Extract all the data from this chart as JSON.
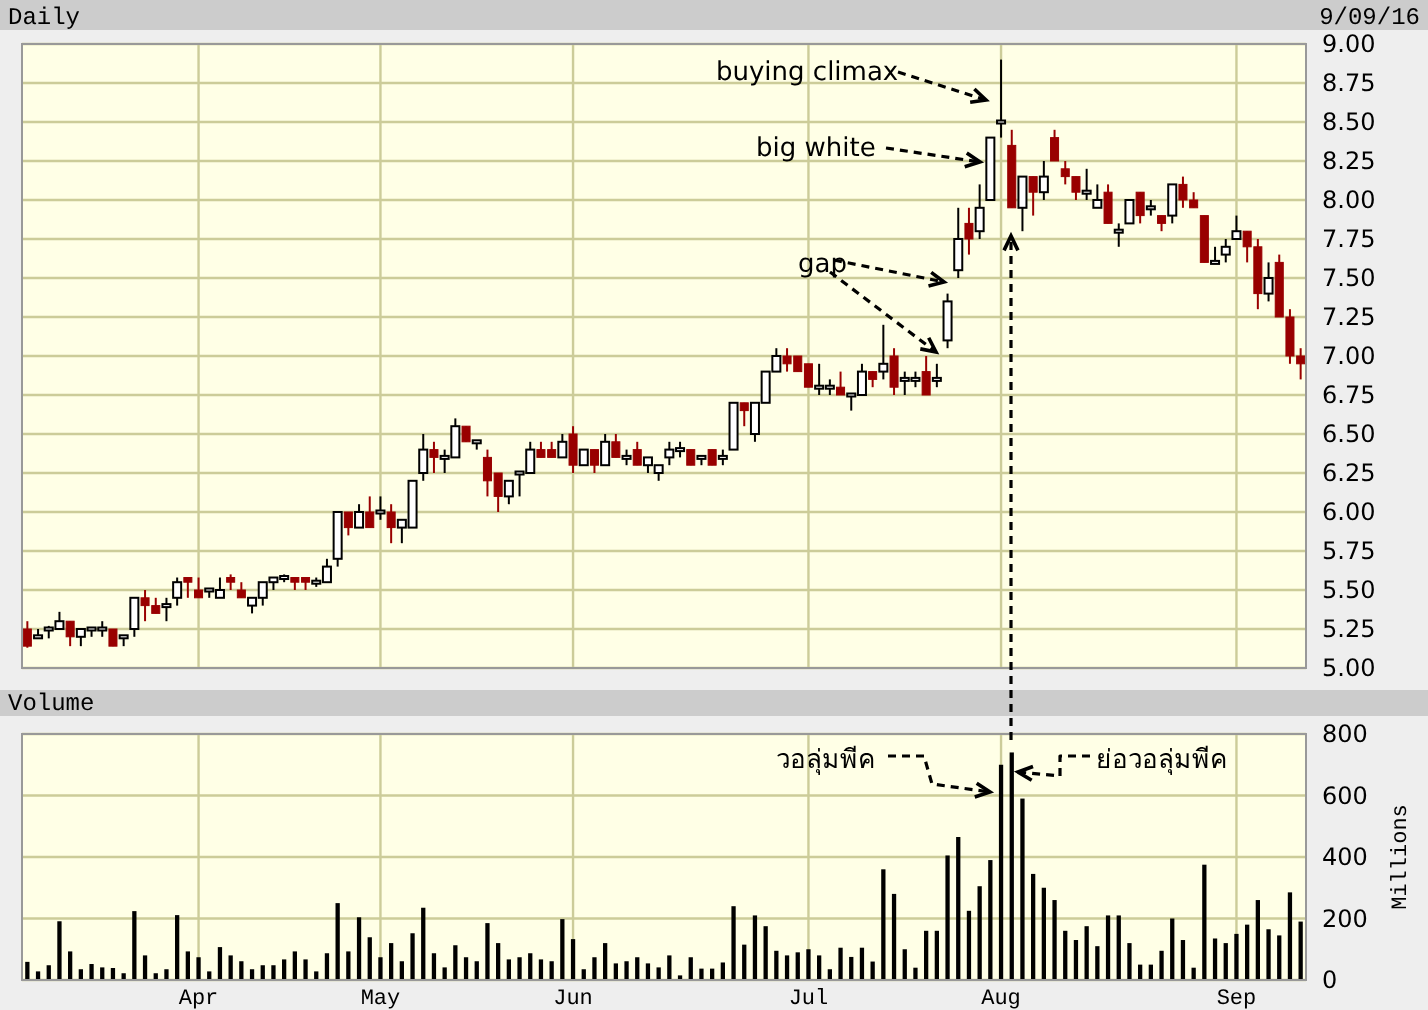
{
  "chart_data": [
    {
      "type": "candlestick",
      "title": "Daily",
      "subtitle": "9/09/16",
      "categories": [
        null,
        null,
        null,
        null,
        null,
        null,
        null,
        null,
        null,
        null,
        null,
        null,
        null,
        null,
        null,
        null,
        null,
        null,
        null,
        null,
        null,
        null,
        null,
        null,
        null,
        null,
        null,
        null,
        null,
        null,
        null,
        null,
        null,
        null,
        null,
        null,
        null,
        null,
        null,
        null,
        null,
        null,
        null,
        null,
        null,
        null,
        null,
        null,
        null,
        null,
        null,
        null,
        null,
        null,
        null,
        null,
        null,
        null,
        null,
        null,
        null,
        null,
        null,
        null,
        null,
        null,
        null,
        null,
        null,
        null,
        null,
        null,
        null,
        null,
        null,
        null,
        null,
        null,
        null,
        null,
        null,
        null,
        null,
        null,
        null,
        null,
        null,
        null,
        null,
        null,
        null,
        null,
        null,
        null,
        null,
        null,
        null,
        null,
        null,
        null,
        null,
        null,
        null,
        null,
        null,
        null,
        null,
        null,
        null,
        null,
        null,
        null,
        null,
        null,
        null,
        null,
        null,
        null,
        null,
        null
      ],
      "ohlc": [
        [
          5.25,
          5.3,
          5.13,
          5.14
        ],
        [
          5.2,
          5.25,
          5.19,
          5.2
        ],
        [
          5.25,
          5.27,
          5.19,
          5.25
        ],
        [
          5.25,
          5.36,
          5.25,
          5.3
        ],
        [
          5.3,
          5.3,
          5.14,
          5.2
        ],
        [
          5.2,
          5.25,
          5.14,
          5.25
        ],
        [
          5.25,
          5.25,
          5.2,
          5.25
        ],
        [
          5.25,
          5.3,
          5.2,
          5.25
        ],
        [
          5.25,
          5.25,
          5.14,
          5.14
        ],
        [
          5.2,
          5.2,
          5.14,
          5.2
        ],
        [
          5.25,
          5.45,
          5.2,
          5.45
        ],
        [
          5.45,
          5.5,
          5.3,
          5.4
        ],
        [
          5.4,
          5.45,
          5.35,
          5.35
        ],
        [
          5.4,
          5.45,
          5.3,
          5.4
        ],
        [
          5.45,
          5.58,
          5.4,
          5.55
        ],
        [
          5.58,
          5.58,
          5.45,
          5.55
        ],
        [
          5.5,
          5.58,
          5.45,
          5.45
        ],
        [
          5.5,
          5.5,
          5.45,
          5.5
        ],
        [
          5.45,
          5.58,
          5.45,
          5.5
        ],
        [
          5.58,
          5.6,
          5.5,
          5.55
        ],
        [
          5.5,
          5.55,
          5.45,
          5.45
        ],
        [
          5.4,
          5.45,
          5.35,
          5.45
        ],
        [
          5.45,
          5.55,
          5.4,
          5.55
        ],
        [
          5.55,
          5.58,
          5.5,
          5.58
        ],
        [
          5.58,
          5.6,
          5.55,
          5.58
        ],
        [
          5.58,
          5.58,
          5.5,
          5.55
        ],
        [
          5.58,
          5.58,
          5.5,
          5.55
        ],
        [
          5.55,
          5.58,
          5.52,
          5.55
        ],
        [
          5.55,
          5.7,
          5.55,
          5.65
        ],
        [
          5.7,
          6,
          5.65,
          6
        ],
        [
          6,
          6,
          5.85,
          5.9
        ],
        [
          5.9,
          6.05,
          5.9,
          6
        ],
        [
          6,
          6.1,
          5.9,
          5.9
        ],
        [
          6,
          6.1,
          5.95,
          6
        ],
        [
          6,
          6.05,
          5.8,
          5.9
        ],
        [
          5.9,
          5.95,
          5.8,
          5.95
        ],
        [
          5.9,
          6.2,
          5.9,
          6.2
        ],
        [
          6.25,
          6.5,
          6.2,
          6.4
        ],
        [
          6.4,
          6.45,
          6.25,
          6.35
        ],
        [
          6.35,
          6.4,
          6.25,
          6.35
        ],
        [
          6.35,
          6.6,
          6.35,
          6.55
        ],
        [
          6.55,
          6.55,
          6.45,
          6.45
        ],
        [
          6.45,
          6.45,
          6.4,
          6.45
        ],
        [
          6.35,
          6.4,
          6.1,
          6.2
        ],
        [
          6.25,
          6.25,
          6,
          6.1
        ],
        [
          6.1,
          6.2,
          6.05,
          6.2
        ],
        [
          6.25,
          6.25,
          6.1,
          6.25
        ],
        [
          6.25,
          6.45,
          6.25,
          6.4
        ],
        [
          6.4,
          6.45,
          6.35,
          6.35
        ],
        [
          6.4,
          6.45,
          6.35,
          6.35
        ],
        [
          6.35,
          6.5,
          6.35,
          6.45
        ],
        [
          6.5,
          6.55,
          6.25,
          6.3
        ],
        [
          6.3,
          6.4,
          6.3,
          6.4
        ],
        [
          6.4,
          6.4,
          6.25,
          6.3
        ],
        [
          6.3,
          6.5,
          6.3,
          6.45
        ],
        [
          6.45,
          6.5,
          6.35,
          6.35
        ],
        [
          6.35,
          6.4,
          6.3,
          6.35
        ],
        [
          6.4,
          6.45,
          6.3,
          6.3
        ],
        [
          6.3,
          6.35,
          6.25,
          6.35
        ],
        [
          6.25,
          6.3,
          6.2,
          6.3
        ],
        [
          6.35,
          6.45,
          6.3,
          6.4
        ],
        [
          6.4,
          6.45,
          6.35,
          6.4
        ],
        [
          6.4,
          6.4,
          6.3,
          6.3
        ],
        [
          6.35,
          6.35,
          6.3,
          6.35
        ],
        [
          6.4,
          6.4,
          6.3,
          6.3
        ],
        [
          6.35,
          6.4,
          6.3,
          6.35
        ],
        [
          6.4,
          6.7,
          6.4,
          6.7
        ],
        [
          6.7,
          6.7,
          6.55,
          6.65
        ],
        [
          6.5,
          6.7,
          6.45,
          6.7
        ],
        [
          6.7,
          6.9,
          6.7,
          6.9
        ],
        [
          6.9,
          7.05,
          6.9,
          7
        ],
        [
          7,
          7.05,
          6.9,
          6.95
        ],
        [
          7,
          7,
          6.9,
          6.9
        ],
        [
          6.95,
          6.95,
          6.8,
          6.8
        ],
        [
          6.8,
          6.95,
          6.75,
          6.8
        ],
        [
          6.8,
          6.85,
          6.75,
          6.8
        ],
        [
          6.8,
          6.9,
          6.75,
          6.75
        ],
        [
          6.75,
          6.75,
          6.65,
          6.75
        ],
        [
          6.75,
          6.95,
          6.75,
          6.9
        ],
        [
          6.9,
          6.9,
          6.8,
          6.85
        ],
        [
          6.9,
          7.2,
          6.85,
          6.95
        ],
        [
          7,
          7.05,
          6.75,
          6.8
        ],
        [
          6.85,
          6.9,
          6.75,
          6.85
        ],
        [
          6.85,
          6.9,
          6.8,
          6.85
        ],
        [
          6.9,
          7,
          6.75,
          6.75
        ],
        [
          6.85,
          6.95,
          6.8,
          6.85
        ],
        [
          7.1,
          7.4,
          7.05,
          7.35
        ],
        [
          7.55,
          7.95,
          7.5,
          7.75
        ],
        [
          7.85,
          7.95,
          7.65,
          7.75
        ],
        [
          7.8,
          8.1,
          7.75,
          7.95
        ],
        [
          8,
          8.4,
          8,
          8.4
        ],
        [
          8.5,
          8.9,
          8.4,
          8.5
        ],
        [
          8.35,
          8.45,
          7.95,
          7.95
        ],
        [
          7.95,
          8.15,
          7.8,
          8.15
        ],
        [
          8.15,
          8.15,
          7.9,
          8.05
        ],
        [
          8.05,
          8.25,
          8,
          8.15
        ],
        [
          8.4,
          8.45,
          8.25,
          8.25
        ],
        [
          8.2,
          8.25,
          8.1,
          8.15
        ],
        [
          8.15,
          8.15,
          8,
          8.05
        ],
        [
          8.05,
          8.2,
          8,
          8.05
        ],
        [
          7.95,
          8.1,
          7.95,
          8
        ],
        [
          8.05,
          8.1,
          7.85,
          7.85
        ],
        [
          7.8,
          7.85,
          7.7,
          7.8
        ],
        [
          7.85,
          8,
          7.85,
          8
        ],
        [
          8.05,
          8.05,
          7.85,
          7.9
        ],
        [
          7.95,
          8,
          7.9,
          7.95
        ],
        [
          7.9,
          7.9,
          7.8,
          7.85
        ],
        [
          7.9,
          8.1,
          7.85,
          8.1
        ],
        [
          8.1,
          8.15,
          7.95,
          8
        ],
        [
          8,
          8.05,
          7.95,
          7.95
        ],
        [
          7.9,
          7.9,
          7.6,
          7.6
        ],
        [
          7.6,
          7.7,
          7.6,
          7.6
        ],
        [
          7.65,
          7.75,
          7.6,
          7.7
        ],
        [
          7.75,
          7.9,
          7.75,
          7.8
        ],
        [
          7.8,
          7.8,
          7.6,
          7.7
        ],
        [
          7.7,
          7.75,
          7.3,
          7.4
        ],
        [
          7.4,
          7.6,
          7.35,
          7.5
        ],
        [
          7.6,
          7.65,
          7.25,
          7.25
        ],
        [
          7.25,
          7.3,
          6.95,
          7
        ],
        [
          7,
          7.05,
          6.85,
          6.95
        ]
      ],
      "ylim": [
        5,
        9
      ],
      "yticks": [
        {
          "value": 5,
          "label": "5.00"
        },
        {
          "value": 5.25,
          "label": "5.25"
        },
        {
          "value": 5.5,
          "label": "5.50"
        },
        {
          "value": 5.75,
          "label": "5.75"
        },
        {
          "value": 6,
          "label": "6.00"
        },
        {
          "value": 6.25,
          "label": "6.25"
        },
        {
          "value": 6.5,
          "label": "6.50"
        },
        {
          "value": 6.75,
          "label": "6.75"
        },
        {
          "value": 7,
          "label": "7.00"
        },
        {
          "value": 7.25,
          "label": "7.25"
        },
        {
          "value": 7.5,
          "label": "7.50"
        },
        {
          "value": 7.75,
          "label": "7.75"
        },
        {
          "value": 8,
          "label": "8.00"
        },
        {
          "value": 8.25,
          "label": "8.25"
        },
        {
          "value": 8.5,
          "label": "8.50"
        },
        {
          "value": 8.75,
          "label": "8.75"
        },
        {
          "value": 9,
          "label": "9.00"
        }
      ],
      "grid": true,
      "tick_labels": "y",
      "annotations": [
        "buying climax",
        "big white",
        "gap"
      ]
    },
    {
      "type": "bar",
      "title": "Volume",
      "ylabel": "Millions",
      "color": "#000000",
      "categories": [
        null,
        null,
        null,
        null,
        null,
        null,
        null,
        null,
        null,
        null,
        null,
        null,
        null,
        null,
        null,
        null,
        "Apr",
        null,
        null,
        null,
        null,
        null,
        null,
        null,
        null,
        null,
        null,
        null,
        null,
        null,
        null,
        null,
        null,
        "May",
        null,
        null,
        null,
        null,
        null,
        null,
        null,
        null,
        null,
        null,
        null,
        null,
        null,
        null,
        null,
        null,
        null,
        "Jun",
        null,
        null,
        null,
        null,
        null,
        null,
        null,
        null,
        null,
        null,
        null,
        null,
        null,
        null,
        null,
        null,
        null,
        null,
        null,
        null,
        null,
        "Jul",
        null,
        null,
        null,
        null,
        null,
        null,
        null,
        null,
        null,
        null,
        null,
        null,
        null,
        null,
        null,
        null,
        null,
        "Aug",
        null,
        null,
        null,
        null,
        null,
        null,
        null,
        null,
        null,
        null,
        null,
        null,
        null,
        null,
        null,
        null,
        null,
        null,
        null,
        null,
        null,
        "Sep",
        null,
        null,
        null,
        null,
        null,
        null
      ],
      "values": [
        59,
        28,
        48,
        191,
        93,
        35,
        52,
        41,
        39,
        22,
        224,
        80,
        22,
        35,
        211,
        93,
        74,
        28,
        107,
        80,
        61,
        35,
        48,
        48,
        67,
        93,
        67,
        28,
        87,
        250,
        93,
        204,
        139,
        74,
        120,
        61,
        152,
        235,
        87,
        41,
        113,
        74,
        61,
        185,
        120,
        67,
        74,
        87,
        67,
        61,
        198,
        133,
        35,
        74,
        120,
        54,
        61,
        74,
        54,
        41,
        80,
        15,
        74,
        37,
        37,
        57,
        240,
        115,
        210,
        175,
        95,
        80,
        90,
        100,
        80,
        35,
        105,
        75,
        105,
        60,
        360,
        280,
        100,
        40,
        160,
        160,
        405,
        465,
        225,
        305,
        390,
        700,
        740,
        590,
        345,
        300,
        260,
        160,
        130,
        175,
        110,
        210,
        210,
        120,
        50,
        50,
        95,
        200,
        130,
        40,
        375,
        135,
        120,
        150,
        180,
        260,
        165,
        145,
        285,
        190
      ],
      "ylim": [
        0,
        800
      ],
      "yticks": [
        0,
        200,
        400,
        600,
        800
      ],
      "grid": true,
      "annotations": [
        "วอลุ่มพีค",
        "ย่อวอลุ่มพีค"
      ]
    }
  ]
}
